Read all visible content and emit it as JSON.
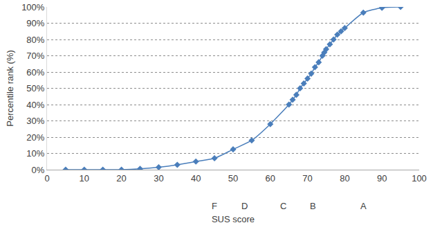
{
  "chart_data": {
    "type": "line",
    "x_label": "SUS score",
    "y_label": "Percentile rank (%)",
    "x": [
      5,
      10,
      15,
      20,
      25,
      30,
      35,
      40,
      45,
      50,
      55,
      60,
      65,
      66,
      67,
      68,
      69,
      70,
      71,
      72,
      73,
      74,
      74.5,
      75,
      76,
      77,
      78,
      79,
      80,
      85,
      90,
      95
    ],
    "values": [
      0,
      0,
      0,
      0,
      0.5,
      1.5,
      3,
      5,
      7,
      12.5,
      18,
      28,
      40,
      43,
      46,
      50,
      53,
      56,
      59,
      63,
      66,
      70,
      72,
      74,
      77,
      80,
      83,
      85,
      87,
      96.5,
      99.5,
      100
    ],
    "color": "#4a7ebb",
    "marker": "diamond",
    "line_style": "solid",
    "xlim": [
      0,
      100
    ],
    "xticks": [
      0,
      10,
      20,
      30,
      40,
      50,
      60,
      70,
      80,
      90,
      100
    ],
    "ylim": [
      0,
      100
    ],
    "yticks": [
      {
        "value": 0,
        "label": "0%"
      },
      {
        "value": 10,
        "label": "10%"
      },
      {
        "value": 20,
        "label": "20%"
      },
      {
        "value": 30,
        "label": "30%"
      },
      {
        "value": 40,
        "label": "40%"
      },
      {
        "value": 50,
        "label": "50%"
      },
      {
        "value": 60,
        "label": "60%"
      },
      {
        "value": 70,
        "label": "70%"
      },
      {
        "value": 80,
        "label": "80%"
      },
      {
        "value": 90,
        "label": "90%"
      },
      {
        "value": 100,
        "label": "100%"
      }
    ],
    "grid": true,
    "annotations": [
      {
        "text": "F",
        "x": 45
      },
      {
        "text": "D",
        "x": 53
      },
      {
        "text": "C",
        "x": 63.5
      },
      {
        "text": "B",
        "x": 71.5
      },
      {
        "text": "A",
        "x": 85
      }
    ]
  }
}
